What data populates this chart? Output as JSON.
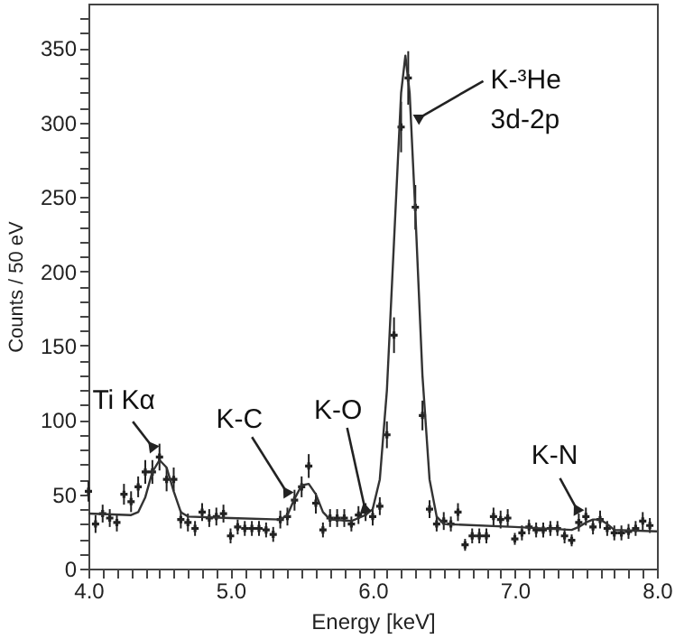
{
  "chart_data": {
    "type": "scatter",
    "xlabel": "Energy [keV]",
    "ylabel": "Counts / 50 eV",
    "xlim": [
      4.0,
      8.0
    ],
    "ylim": [
      0,
      380
    ],
    "xticks": [
      {
        "value": 4,
        "label": "4.0"
      },
      {
        "value": 4.1,
        "label": null
      },
      {
        "value": 4.2,
        "label": null
      },
      {
        "value": 4.3,
        "label": null
      },
      {
        "value": 4.4,
        "label": null
      },
      {
        "value": 4.5,
        "label": null
      },
      {
        "value": 4.6,
        "label": null
      },
      {
        "value": 4.7,
        "label": null
      },
      {
        "value": 4.8,
        "label": null
      },
      {
        "value": 4.9,
        "label": null
      },
      {
        "value": 5,
        "label": "5.0"
      },
      {
        "value": 5.1,
        "label": null
      },
      {
        "value": 5.2,
        "label": null
      },
      {
        "value": 5.3,
        "label": null
      },
      {
        "value": 5.4,
        "label": null
      },
      {
        "value": 5.5,
        "label": null
      },
      {
        "value": 5.6,
        "label": null
      },
      {
        "value": 5.7,
        "label": null
      },
      {
        "value": 5.8,
        "label": null
      },
      {
        "value": 5.9,
        "label": null
      },
      {
        "value": 6,
        "label": "6.0"
      },
      {
        "value": 6.1,
        "label": null
      },
      {
        "value": 6.2,
        "label": null
      },
      {
        "value": 6.3,
        "label": null
      },
      {
        "value": 6.4,
        "label": null
      },
      {
        "value": 6.5,
        "label": null
      },
      {
        "value": 6.6,
        "label": null
      },
      {
        "value": 6.7,
        "label": null
      },
      {
        "value": 6.8,
        "label": null
      },
      {
        "value": 6.9,
        "label": null
      },
      {
        "value": 7,
        "label": "7.0"
      },
      {
        "value": 7.1,
        "label": null
      },
      {
        "value": 7.2,
        "label": null
      },
      {
        "value": 7.3,
        "label": null
      },
      {
        "value": 7.4,
        "label": null
      },
      {
        "value": 7.5,
        "label": null
      },
      {
        "value": 7.6,
        "label": null
      },
      {
        "value": 7.7,
        "label": null
      },
      {
        "value": 7.8,
        "label": null
      },
      {
        "value": 7.9,
        "label": null
      },
      {
        "value": 8,
        "label": "8.0"
      }
    ],
    "yticks": [
      0,
      {
        "value": 10,
        "label": null
      },
      {
        "value": 20,
        "label": null
      },
      {
        "value": 30,
        "label": null
      },
      {
        "value": 40,
        "label": null
      },
      50,
      {
        "value": 60,
        "label": null
      },
      {
        "value": 70,
        "label": null
      },
      {
        "value": 80,
        "label": null
      },
      {
        "value": 90,
        "label": null
      },
      100,
      {
        "value": 110,
        "label": null
      },
      {
        "value": 120,
        "label": null
      },
      {
        "value": 130,
        "label": null
      },
      {
        "value": 140,
        "label": null
      },
      150,
      {
        "value": 160,
        "label": null
      },
      {
        "value": 170,
        "label": null
      },
      {
        "value": 180,
        "label": null
      },
      {
        "value": 190,
        "label": null
      },
      200,
      {
        "value": 210,
        "label": null
      },
      {
        "value": 220,
        "label": null
      },
      {
        "value": 230,
        "label": null
      },
      {
        "value": 240,
        "label": null
      },
      250,
      {
        "value": 260,
        "label": null
      },
      {
        "value": 270,
        "label": null
      },
      {
        "value": 280,
        "label": null
      },
      {
        "value": 290,
        "label": null
      },
      300,
      {
        "value": 310,
        "label": null
      },
      {
        "value": 320,
        "label": null
      },
      {
        "value": 330,
        "label": null
      },
      {
        "value": 340,
        "label": null
      },
      350,
      {
        "value": 360,
        "label": null
      },
      {
        "value": 370,
        "label": null
      }
    ],
    "series": [
      {
        "type": "scatter",
        "color": "#222222",
        "marker": "cross",
        "x": [
          4.0,
          4.05,
          4.1,
          4.15,
          4.2,
          4.25,
          4.3,
          4.35,
          4.4,
          4.45,
          4.5,
          4.55,
          4.6,
          4.65,
          4.7,
          4.75,
          4.8,
          4.85,
          4.9,
          4.95,
          5.0,
          5.05,
          5.1,
          5.15,
          5.2,
          5.25,
          5.3,
          5.35,
          5.4,
          5.45,
          5.5,
          5.55,
          5.6,
          5.65,
          5.7,
          5.75,
          5.8,
          5.85,
          5.9,
          5.95,
          6.0,
          6.05,
          6.1,
          6.15,
          6.2,
          6.25,
          6.3,
          6.35,
          6.4,
          6.45,
          6.5,
          6.55,
          6.6,
          6.65,
          6.7,
          6.75,
          6.8,
          6.85,
          6.9,
          6.95,
          7.0,
          7.05,
          7.1,
          7.15,
          7.2,
          7.25,
          7.3,
          7.35,
          7.4,
          7.45,
          7.5,
          7.55,
          7.6,
          7.65,
          7.7,
          7.75,
          7.8,
          7.85,
          7.9,
          7.95
        ],
        "values": [
          52,
          30,
          37,
          34,
          31,
          50,
          45,
          55,
          65,
          65,
          75,
          60,
          60,
          33,
          31,
          27,
          38,
          34,
          35,
          37,
          22,
          28,
          27,
          27,
          27,
          26,
          23,
          33,
          35,
          46,
          55,
          69,
          44,
          26,
          34,
          34,
          34,
          30,
          36,
          38,
          35,
          42,
          90,
          157,
          297,
          330,
          243,
          103,
          40,
          30,
          32,
          30,
          38,
          16,
          22,
          22,
          22,
          35,
          33,
          34,
          20,
          24,
          28,
          26,
          26,
          27,
          27,
          22,
          19,
          31,
          35,
          28,
          33,
          27,
          24,
          24,
          25,
          27,
          32,
          29
        ],
        "errors": [
          7,
          6,
          6,
          6,
          6,
          7,
          7,
          7,
          8,
          8,
          9,
          8,
          8,
          6,
          6,
          5,
          6,
          6,
          6,
          6,
          5,
          5,
          5,
          5,
          5,
          5,
          5,
          6,
          6,
          7,
          7,
          8,
          7,
          5,
          6,
          6,
          6,
          5,
          6,
          6,
          6,
          6,
          9,
          12,
          17,
          18,
          15,
          10,
          6,
          5,
          6,
          5,
          6,
          4,
          5,
          5,
          5,
          6,
          6,
          6,
          4,
          5,
          5,
          5,
          5,
          5,
          5,
          5,
          4,
          6,
          6,
          5,
          6,
          5,
          5,
          5,
          5,
          5,
          6,
          5
        ]
      },
      {
        "type": "line",
        "color": "#333333",
        "x": [
          4.0,
          4.3,
          4.35,
          4.4,
          4.45,
          4.5,
          4.55,
          4.6,
          4.65,
          4.7,
          5.0,
          5.35,
          5.4,
          5.45,
          5.5,
          5.55,
          5.6,
          5.65,
          5.7,
          5.85,
          5.9,
          5.95,
          6.0,
          6.05,
          6.1,
          6.15,
          6.2,
          6.23,
          6.26,
          6.3,
          6.35,
          6.4,
          6.45,
          6.5,
          7.0,
          7.4,
          7.45,
          7.5,
          7.55,
          7.6,
          7.65,
          7.7,
          8.0
        ],
        "values": [
          37,
          36,
          38,
          48,
          65,
          73,
          68,
          52,
          38,
          35,
          34,
          33,
          36,
          47,
          56,
          57,
          50,
          38,
          33,
          32,
          34,
          36,
          40,
          60,
          120,
          220,
          320,
          345,
          320,
          240,
          130,
          60,
          35,
          30,
          28,
          26,
          28,
          31,
          33,
          33,
          30,
          26,
          25
        ]
      }
    ],
    "annotations": [
      {
        "text": "Ti Kα",
        "x": 4.49,
        "y": 77
      },
      {
        "text": "K-C",
        "x": 5.43,
        "y": 46
      },
      {
        "text": "K-O",
        "x": 5.96,
        "y": 34
      },
      {
        "text": "K-N",
        "x": 7.47,
        "y": 34
      },
      {
        "text": "K-³He\n3d-2p",
        "x": 6.27,
        "y": 300
      }
    ]
  }
}
